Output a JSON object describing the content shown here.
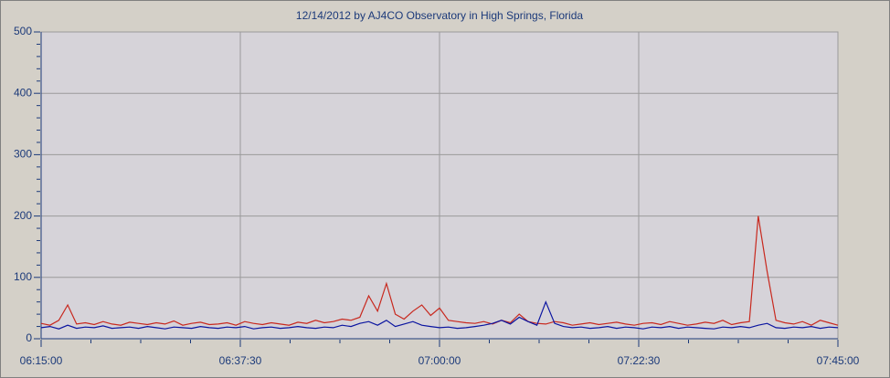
{
  "chart_data": {
    "type": "line",
    "title": "12/14/2012  by  AJ4CO Observatory  in  High Springs, Florida",
    "x": [
      "06:15:00",
      "06:16:00",
      "06:17:00",
      "06:18:00",
      "06:19:00",
      "06:20:00",
      "06:21:00",
      "06:22:00",
      "06:23:00",
      "06:24:00",
      "06:25:00",
      "06:26:00",
      "06:27:00",
      "06:28:00",
      "06:29:00",
      "06:30:00",
      "06:31:00",
      "06:32:00",
      "06:33:00",
      "06:34:00",
      "06:35:00",
      "06:36:00",
      "06:37:00",
      "06:38:00",
      "06:39:00",
      "06:40:00",
      "06:41:00",
      "06:42:00",
      "06:43:00",
      "06:44:00",
      "06:45:00",
      "06:46:00",
      "06:47:00",
      "06:48:00",
      "06:49:00",
      "06:50:00",
      "06:51:00",
      "06:52:00",
      "06:53:00",
      "06:54:00",
      "06:55:00",
      "06:56:00",
      "06:57:00",
      "06:58:00",
      "06:59:00",
      "07:00:00",
      "07:01:00",
      "07:02:00",
      "07:03:00",
      "07:04:00",
      "07:05:00",
      "07:06:00",
      "07:07:00",
      "07:08:00",
      "07:09:00",
      "07:10:00",
      "07:11:00",
      "07:12:00",
      "07:13:00",
      "07:14:00",
      "07:15:00",
      "07:16:00",
      "07:17:00",
      "07:18:00",
      "07:19:00",
      "07:20:00",
      "07:21:00",
      "07:22:00",
      "07:23:00",
      "07:24:00",
      "07:25:00",
      "07:26:00",
      "07:27:00",
      "07:28:00",
      "07:29:00",
      "07:30:00",
      "07:31:00",
      "07:32:00",
      "07:33:00",
      "07:34:00",
      "07:35:00",
      "07:36:00",
      "07:37:00",
      "07:38:00",
      "07:39:00",
      "07:40:00",
      "07:41:00",
      "07:42:00",
      "07:43:00",
      "07:44:00",
      "07:45:00"
    ],
    "series": [
      {
        "color": "#c8281e",
        "values": [
          25,
          22,
          30,
          55,
          24,
          26,
          23,
          28,
          24,
          22,
          27,
          25,
          23,
          26,
          24,
          29,
          22,
          25,
          27,
          23,
          24,
          26,
          22,
          28,
          25,
          23,
          26,
          24,
          22,
          27,
          25,
          30,
          26,
          28,
          32,
          30,
          35,
          70,
          45,
          90,
          40,
          32,
          45,
          55,
          38,
          50,
          30,
          28,
          26,
          25,
          28,
          24,
          30,
          26,
          40,
          28,
          25,
          24,
          28,
          26,
          22,
          24,
          26,
          23,
          25,
          27,
          24,
          22,
          25,
          26,
          23,
          28,
          25,
          22,
          24,
          27,
          25,
          30,
          23,
          26,
          28,
          200,
          110,
          30,
          26,
          24,
          28,
          22,
          30,
          26,
          22
        ]
      },
      {
        "color": "#0a14a0",
        "values": [
          18,
          20,
          16,
          22,
          17,
          19,
          18,
          21,
          17,
          18,
          19,
          17,
          20,
          18,
          16,
          19,
          18,
          17,
          20,
          18,
          17,
          19,
          18,
          20,
          16,
          18,
          19,
          17,
          18,
          20,
          18,
          17,
          19,
          18,
          22,
          20,
          25,
          28,
          22,
          30,
          20,
          24,
          28,
          22,
          20,
          18,
          19,
          17,
          18,
          20,
          22,
          25,
          30,
          24,
          35,
          28,
          22,
          60,
          25,
          20,
          18,
          19,
          17,
          18,
          20,
          17,
          19,
          18,
          16,
          19,
          18,
          20,
          17,
          19,
          18,
          17,
          16,
          19,
          18,
          20,
          18,
          22,
          25,
          18,
          17,
          19,
          18,
          20,
          17,
          19,
          18
        ]
      }
    ],
    "xlim": [
      "06:15:00",
      "07:45:00"
    ],
    "xticks": [
      "06:15:00",
      "06:37:30",
      "07:00:00",
      "07:22:30",
      "07:45:00"
    ],
    "ylim": [
      0,
      500
    ],
    "yticks": [
      0,
      100,
      200,
      300,
      400,
      500
    ],
    "grid": true
  }
}
